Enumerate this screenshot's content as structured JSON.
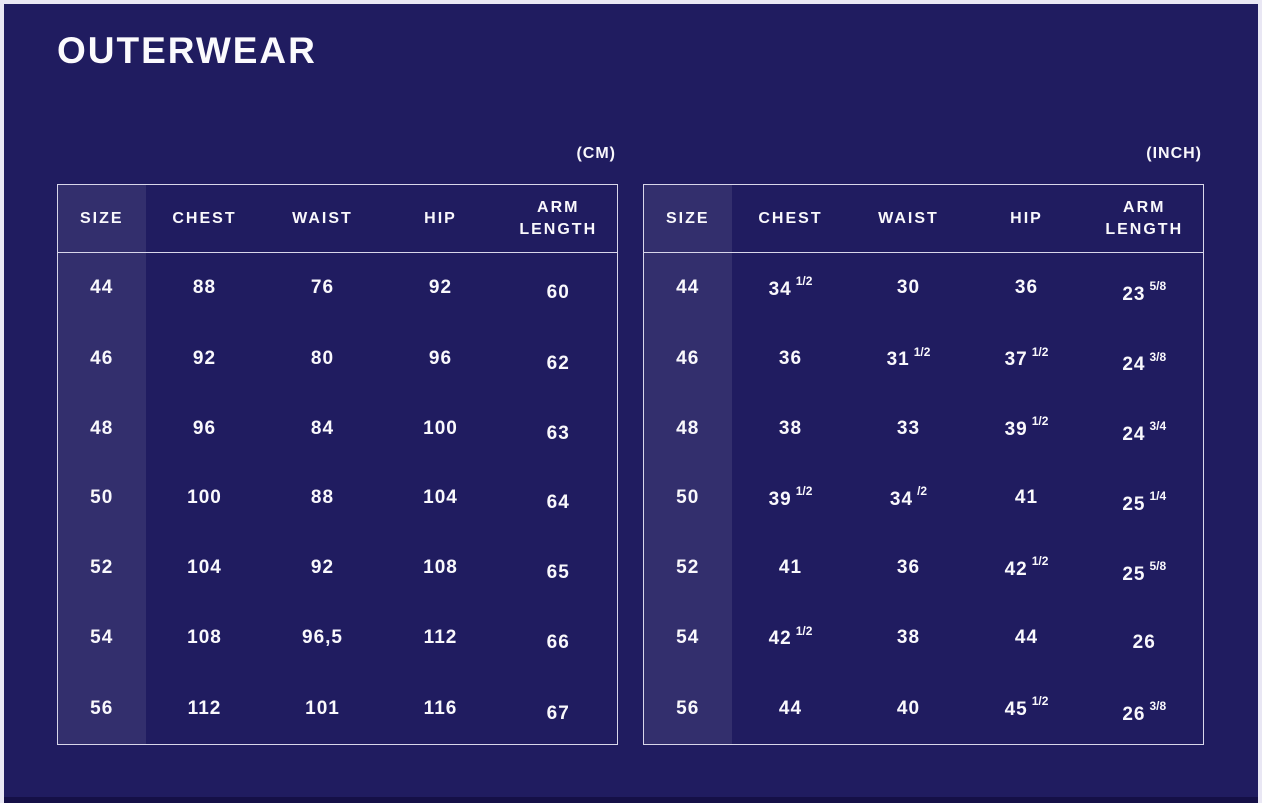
{
  "page": {
    "title": "OUTERWEAR",
    "colors": {
      "background": "#201c60",
      "size_column_highlight": "#332e6e",
      "table_border": "#d8d6ea",
      "outer_frame": "#e9e7f4",
      "bottom_strip": "#151047",
      "text": "#f9f8fc"
    }
  },
  "cm_table": {
    "unit_label": "(CM)",
    "headers": [
      "SIZE",
      "CHEST",
      "WAIST",
      "HIP",
      "ARM LENGTH"
    ],
    "rows": [
      [
        "44",
        "88",
        "76",
        "92",
        "60"
      ],
      [
        "46",
        "92",
        "80",
        "96",
        "62"
      ],
      [
        "48",
        "96",
        "84",
        "100",
        "63"
      ],
      [
        "50",
        "100",
        "88",
        "104",
        "64"
      ],
      [
        "52",
        "104",
        "92",
        "108",
        "65"
      ],
      [
        "54",
        "108",
        "96,5",
        "112",
        "66"
      ],
      [
        "56",
        "112",
        "101",
        "116",
        "67"
      ]
    ]
  },
  "inch_table": {
    "unit_label": "(INCH)",
    "headers": [
      "SIZE",
      "CHEST",
      "WAIST",
      "HIP",
      "ARM LENGTH"
    ],
    "rows": [
      [
        "44",
        "34 1/2",
        "30",
        "36",
        "23 5/8"
      ],
      [
        "46",
        "36",
        "31 1/2",
        "37 1/2",
        "24 3/8"
      ],
      [
        "48",
        "38",
        "33",
        "39 1/2",
        "24 3/4"
      ],
      [
        "50",
        "39 1/2",
        "34 /2",
        "41",
        "25 1/4"
      ],
      [
        "52",
        "41",
        "36",
        "42 1/2",
        "25 5/8"
      ],
      [
        "54",
        "42 1/2",
        "38",
        "44",
        "26"
      ],
      [
        "56",
        "44",
        "40",
        "45 1/2",
        "26 3/8"
      ]
    ]
  }
}
